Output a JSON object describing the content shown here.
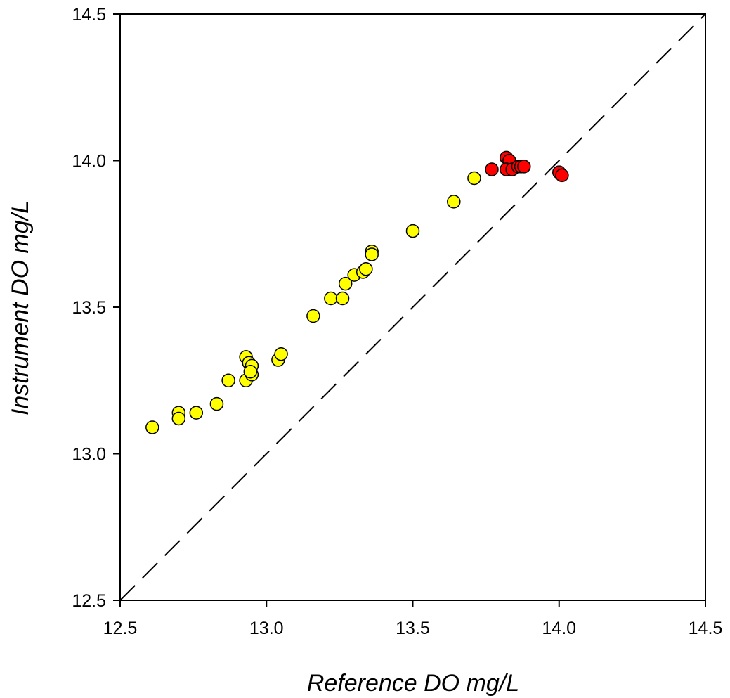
{
  "chart_data": {
    "type": "scatter",
    "title": "",
    "xlabel": "Reference DO mg/L",
    "ylabel": "Instrument DO mg/L",
    "xlim": [
      12.5,
      14.5
    ],
    "ylim": [
      12.5,
      14.5
    ],
    "x_ticks": [
      "12.5",
      "13.0",
      "13.5",
      "14.0",
      "14.5"
    ],
    "y_ticks": [
      "12.5",
      "13.0",
      "13.5",
      "14.0",
      "14.5"
    ],
    "grid": false,
    "reference_line": {
      "style": "dashed",
      "from": [
        12.5,
        12.5
      ],
      "to": [
        14.5,
        14.5
      ]
    },
    "series": [
      {
        "color": "#ffff00",
        "points": [
          [
            12.61,
            13.09
          ],
          [
            12.7,
            13.14
          ],
          [
            12.7,
            13.12
          ],
          [
            12.76,
            13.14
          ],
          [
            12.83,
            13.17
          ],
          [
            12.87,
            13.25
          ],
          [
            12.93,
            13.25
          ],
          [
            12.93,
            13.33
          ],
          [
            12.94,
            13.31
          ],
          [
            12.95,
            13.3
          ],
          [
            12.95,
            13.27
          ],
          [
            12.945,
            13.28
          ],
          [
            13.04,
            13.32
          ],
          [
            13.05,
            13.34
          ],
          [
            13.16,
            13.47
          ],
          [
            13.22,
            13.53
          ],
          [
            13.26,
            13.53
          ],
          [
            13.27,
            13.58
          ],
          [
            13.3,
            13.61
          ],
          [
            13.33,
            13.62
          ],
          [
            13.34,
            13.63
          ],
          [
            13.36,
            13.69
          ],
          [
            13.36,
            13.68
          ],
          [
            13.5,
            13.76
          ],
          [
            13.64,
            13.86
          ],
          [
            13.71,
            13.94
          ]
        ]
      },
      {
        "color": "#ff0000",
        "points": [
          [
            13.77,
            13.97
          ],
          [
            13.82,
            14.01
          ],
          [
            13.83,
            14.0
          ],
          [
            13.82,
            13.97
          ],
          [
            13.84,
            13.97
          ],
          [
            13.86,
            13.98
          ],
          [
            13.87,
            13.98
          ],
          [
            13.88,
            13.98
          ],
          [
            14.0,
            13.96
          ],
          [
            14.01,
            13.95
          ]
        ]
      }
    ]
  }
}
